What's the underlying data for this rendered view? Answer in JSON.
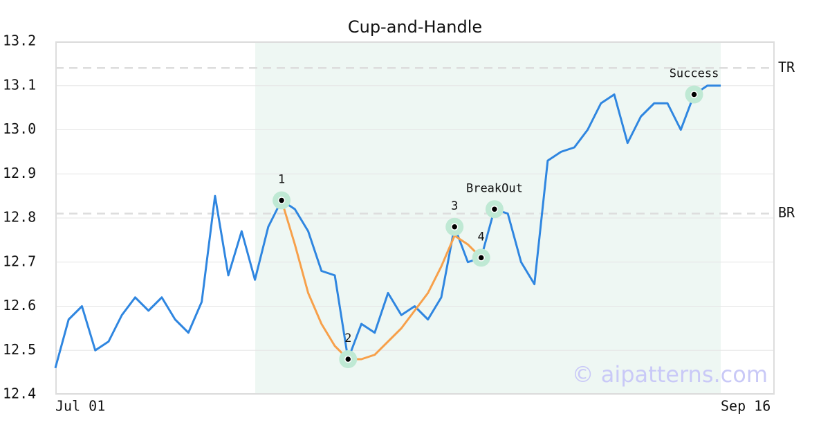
{
  "chart_data": {
    "type": "line",
    "title": "Cup-and-Handle",
    "categories": [
      "Jul 01",
      null,
      null,
      null,
      null,
      null,
      null,
      null,
      null,
      null,
      null,
      null,
      null,
      null,
      null,
      null,
      null,
      null,
      null,
      null,
      null,
      null,
      null,
      null,
      null,
      null,
      null,
      null,
      null,
      null,
      null,
      null,
      null,
      null,
      null,
      null,
      null,
      null,
      null,
      null,
      null,
      null,
      null,
      null,
      null,
      null,
      null,
      null,
      null,
      null,
      "Sep 16"
    ],
    "series": [
      {
        "color": "#2f86e0",
        "values": [
          12.46,
          12.57,
          12.6,
          12.5,
          12.52,
          12.58,
          12.62,
          12.59,
          12.62,
          12.57,
          12.54,
          12.61,
          12.85,
          12.67,
          12.77,
          12.66,
          12.78,
          12.84,
          12.82,
          12.77,
          12.68,
          12.67,
          12.48,
          12.56,
          12.54,
          12.63,
          12.58,
          12.6,
          12.57,
          12.62,
          12.78,
          12.7,
          12.71,
          12.82,
          12.81,
          12.7,
          12.65,
          12.93,
          12.95,
          12.96,
          13.0,
          13.06,
          13.08,
          12.97,
          13.03,
          13.06,
          13.06,
          13.0,
          13.08,
          13.1,
          13.1
        ]
      },
      {
        "color": "#f7a04a",
        "values": [
          null,
          null,
          null,
          null,
          null,
          null,
          null,
          null,
          null,
          null,
          null,
          null,
          null,
          null,
          null,
          null,
          null,
          12.84,
          12.74,
          12.63,
          12.56,
          12.51,
          12.48,
          12.48,
          12.49,
          12.52,
          12.55,
          12.59,
          12.63,
          12.69,
          12.76,
          12.74,
          12.71,
          null,
          null,
          null,
          null,
          null,
          null,
          null,
          null,
          null,
          null,
          null,
          null,
          null,
          null,
          null,
          null,
          null,
          null
        ]
      }
    ],
    "annotations": [
      {
        "text": "1",
        "index": 17
      },
      {
        "text": "2",
        "index": 22
      },
      {
        "text": "3",
        "index": 30
      },
      {
        "text": "4",
        "index": 32
      },
      {
        "text": "BreakOut",
        "index": 33
      },
      {
        "text": "Success",
        "index": 48
      }
    ],
    "reference_lines": [
      {
        "label": "TR",
        "value": 13.14
      },
      {
        "label": "BR",
        "value": 12.81
      }
    ],
    "watermark": "© aipatterns.com",
    "ylim": [
      12.4,
      13.2
    ],
    "yticks": [
      12.4,
      12.5,
      12.6,
      12.7,
      12.8,
      12.9,
      {
        "value": 13,
        "label": "13.0"
      },
      13.1,
      13.2
    ],
    "grid": true
  }
}
